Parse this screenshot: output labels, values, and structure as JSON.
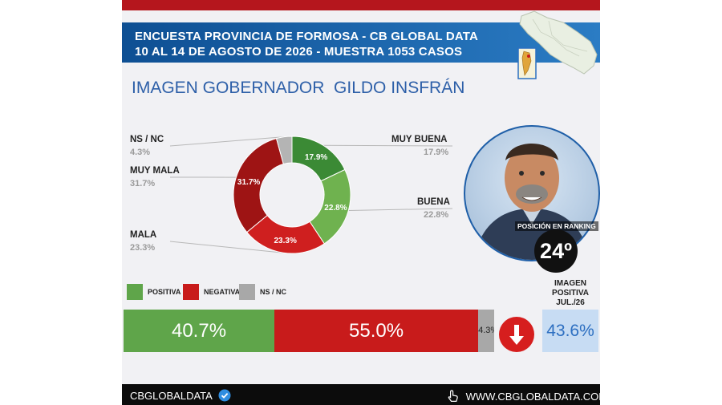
{
  "header": {
    "line1": "ENCUESTA PROVINCIA DE FORMOSA - CB GLOBAL DATA",
    "line2": "10 AL 14 DE AGOSTO DE 2026 - MUESTRA 1053 CASOS"
  },
  "title": "IMAGEN GOBERNADOR  GILDO INSFRÁN",
  "colors": {
    "positive": "#5fa54a",
    "negative": "#c81b1b",
    "negative_dark": "#9e1414",
    "nsnc": "#a8a8a8",
    "header": "#1a5ea8",
    "accent_red": "#b5161d",
    "image_box": "#c7dcf3"
  },
  "chart_data": [
    {
      "type": "pie",
      "style": "donut",
      "slices": [
        {
          "label": "MUY BUENA",
          "value": 17.9,
          "value_label": "17.9%",
          "color": "#3b8a35"
        },
        {
          "label": "BUENA",
          "value": 22.8,
          "value_label": "22.8%",
          "color": "#6fb24f"
        },
        {
          "label": "MALA",
          "value": 23.3,
          "value_label": "23.3%",
          "color": "#cf1f1f"
        },
        {
          "label": "MUY MALA",
          "value": 31.7,
          "value_label": "31.7%",
          "color": "#9e1414"
        },
        {
          "label": "NS / NC",
          "value": 4.3,
          "value_label": "4.3%",
          "color": "#b4b4b4"
        }
      ]
    },
    {
      "type": "bar",
      "orientation": "horizontal-stacked",
      "legend": [
        "POSITIVA",
        "NEGATIVA",
        "NS / NC"
      ],
      "series": [
        {
          "name": "POSITIVA",
          "value": 40.7,
          "value_label": "40.7%",
          "color": "#5fa54a"
        },
        {
          "name": "NEGATIVA",
          "value": 55.0,
          "value_label": "55.0%",
          "color": "#c81b1b"
        },
        {
          "name": "NS / NC",
          "value": 4.3,
          "value_label": "4.3%",
          "color": "#a8a8a8"
        }
      ]
    }
  ],
  "ranking": {
    "label": "POSICIÓN EN RANKING",
    "value": "24º"
  },
  "previous": {
    "label_line1": "IMAGEN",
    "label_line2": "POSITIVA",
    "label_line3": "JUL./26",
    "value": "43.6%"
  },
  "footer": {
    "brand": "CBGLOBALDATA",
    "website": "WWW.CBGLOBALDATA.COM"
  }
}
